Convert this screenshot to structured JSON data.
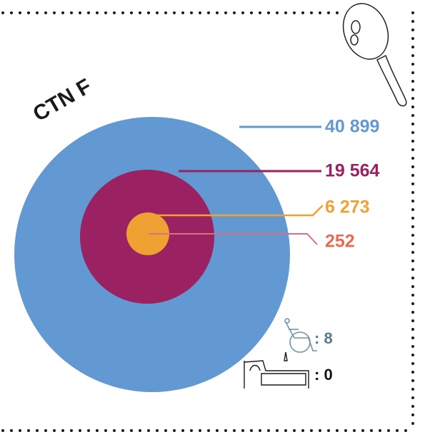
{
  "title": "CTN F",
  "circles": [
    {
      "label": "40 899",
      "color": "#6399d2"
    },
    {
      "label": "19 564",
      "color": "#9a2263"
    },
    {
      "label": "6 273",
      "color": "#f0a133"
    },
    {
      "label": "252",
      "color": "#ea6a50"
    }
  ],
  "wheelchair": ": 8",
  "bed": ": 0"
}
